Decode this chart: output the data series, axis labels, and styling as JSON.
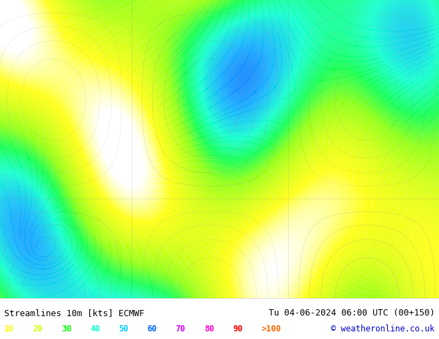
{
  "title_left": "Streamlines 10m [kts] ECMWF",
  "title_right": "Tu 04-06-2024 06:00 UTC (00+150)",
  "copyright": "© weatheronline.co.uk",
  "legend_values": [
    "10",
    "20",
    "30",
    "40",
    "50",
    "60",
    "70",
    "80",
    "90",
    ">100"
  ],
  "legend_colors": [
    "#ffff00",
    "#ccff00",
    "#00ff00",
    "#00ffcc",
    "#00ccff",
    "#0066ff",
    "#cc00ff",
    "#ff00cc",
    "#ff0000",
    "#ff6600"
  ],
  "bg_color": "#ffffff",
  "map_bg": "#f0f0f0",
  "bottom_bar_color": "#ffffff",
  "title_color": "#000000",
  "copyright_color": "#0000cc",
  "figwidth": 6.34,
  "figheight": 4.9,
  "dpi": 100
}
